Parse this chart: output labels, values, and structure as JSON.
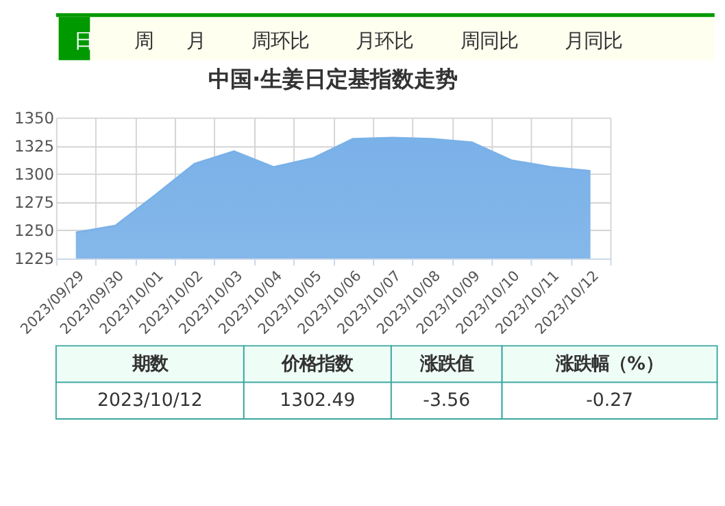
{
  "chart_data": {
    "type": "area",
    "title": "中国·生姜日定基指数走势",
    "categories": [
      "2023/09/29",
      "2023/09/30",
      "2023/10/01",
      "2023/10/02",
      "2023/10/03",
      "2023/10/04",
      "2023/10/05",
      "2023/10/06",
      "2023/10/07",
      "2023/10/08",
      "2023/10/09",
      "2023/10/10",
      "2023/10/11",
      "2023/10/12"
    ],
    "series": [
      {
        "color": "#7ab1e8",
        "values": [
          1248,
          1254,
          1281,
          1309,
          1320,
          1306,
          1314,
          1331,
          1332,
          1331,
          1328,
          1312,
          1306,
          1302.49
        ]
      }
    ],
    "ylim": [
      1225,
      1350
    ],
    "yticks": [
      1225,
      1250,
      1275,
      1300,
      1325,
      1350
    ],
    "grid": true,
    "annotations": [
      "日",
      "周",
      "月",
      "周环比",
      "月环比",
      "周同比",
      "月同比",
      "期数",
      "价格指数",
      "涨跌值",
      "涨跌幅（%）",
      "2023/10/12",
      "1302.49",
      "-3.56",
      "-0.27"
    ]
  }
}
